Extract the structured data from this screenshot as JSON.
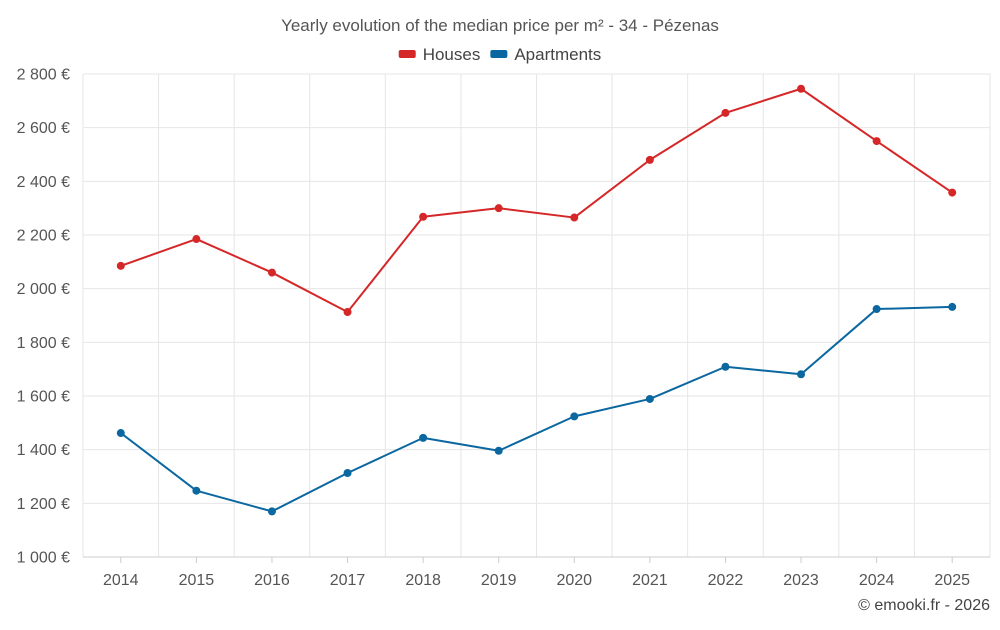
{
  "chart_data": {
    "type": "line",
    "title": "Yearly evolution of the median price per m² - 34 - Pézenas",
    "categories": [
      "2014",
      "2015",
      "2016",
      "2017",
      "2018",
      "2019",
      "2020",
      "2021",
      "2022",
      "2023",
      "2024",
      "2025"
    ],
    "series": [
      {
        "name": "Houses",
        "color": "#d62728",
        "values": [
          2085,
          2185,
          2060,
          1913,
          2268,
          2300,
          2265,
          2480,
          2655,
          2745,
          2550,
          2358
        ]
      },
      {
        "name": "Apartments",
        "color": "#0b67a0",
        "values": [
          1462,
          1247,
          1170,
          1313,
          1444,
          1396,
          1524,
          1589,
          1709,
          1681,
          1924,
          1932
        ]
      }
    ],
    "ylim": [
      1000,
      2800
    ],
    "yticks": [
      1000,
      1200,
      1400,
      1600,
      1800,
      2000,
      2200,
      2400,
      2600,
      2800
    ],
    "ytick_labels": [
      "1 000 €",
      "1 200 €",
      "1 400 €",
      "1 600 €",
      "1 800 €",
      "2 000 €",
      "2 200 €",
      "2 400 €",
      "2 600 €",
      "2 800 €"
    ],
    "xlabel": "",
    "ylabel": "",
    "grid": true,
    "legend_position": "top-center"
  },
  "credit": "© emooki.fr - 2026"
}
